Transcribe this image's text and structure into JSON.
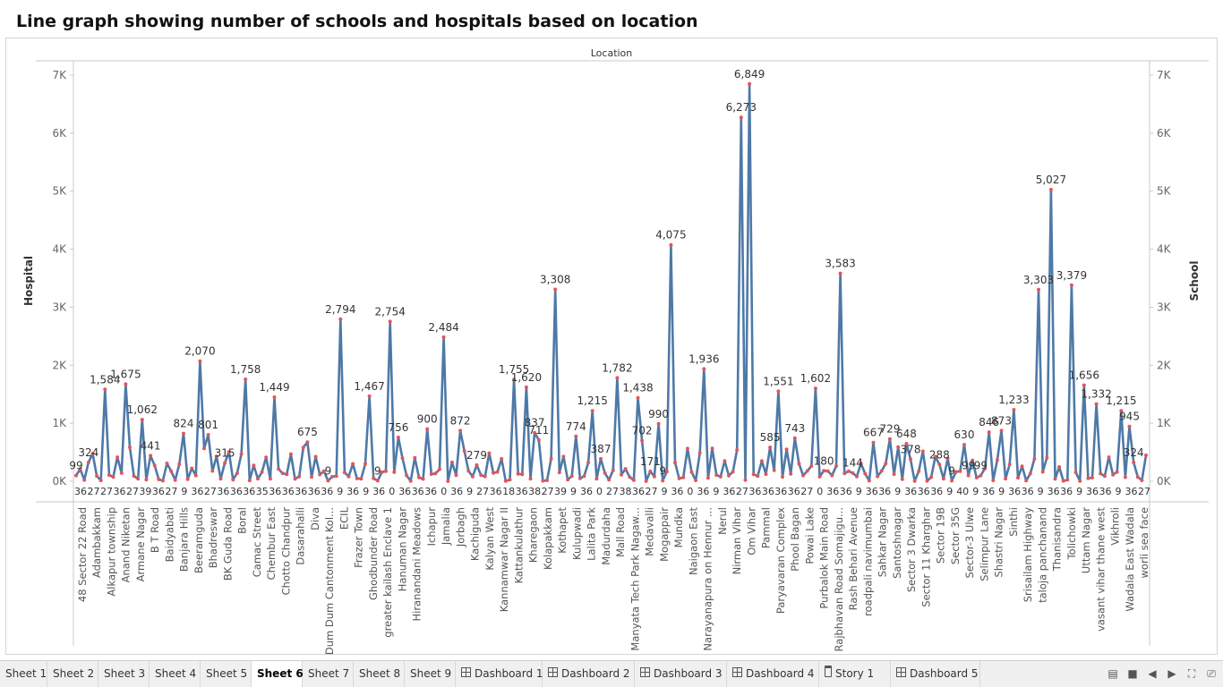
{
  "page": {
    "title": "Line graph showing number of schools and hospitals based on location"
  },
  "chart_data": {
    "type": "line",
    "header": "Location",
    "ylabel_left": "Hospital",
    "ylabel_right": "School",
    "ylim": [
      0,
      7000
    ],
    "yticks": [
      0,
      1000,
      2000,
      3000,
      4000,
      5000,
      6000,
      7000
    ],
    "ytick_labels": [
      "0K",
      "1K",
      "2K",
      "3K",
      "4K",
      "5K",
      "6K",
      "7K"
    ],
    "x_labels": [
      "48 Sector 22 Road",
      "Adambakkam",
      "Alkapur township",
      "Anand Niketan",
      "Armane Nagar",
      "B T Road",
      "Baidyabati",
      "Banjara Hills",
      "Beeramguda",
      "Bhadreswar",
      "BK Guda Road",
      "Boral",
      "Camac Street",
      "Chembur East",
      "Chotto Chandpur",
      "Dasarahalli",
      "Diva",
      "Dum Dum Cantonment Kol...",
      "ECIL",
      "Frazer Town",
      "Ghodbunder Road",
      "greater kailash Enclave 1",
      "Hanuman Nagar",
      "Hiranandani Meadows",
      "Ichapur",
      "Jamalia",
      "Jorbagh",
      "Kachiguda",
      "Kalyan West",
      "Kannamwar Nagar II",
      "Kattankulathur",
      "Kharegaon",
      "Kolapakkam",
      "Kothapet",
      "Kulupwadi",
      "Lalita Park",
      "Madurdaha",
      "Mall Road",
      "Manyata Tech Park Nagaw...",
      "Medavalli",
      "Mogappair",
      "Mundka",
      "Naigaon East",
      "Narayanapura on Hennur ...",
      "Nerul",
      "Nirman Vihar",
      "Om Vihar",
      "Pammal",
      "Paryavaran Complex",
      "Phool Bagan",
      "Powai Lake",
      "Purbalok Main Road",
      "Rajbhavan Road Somajigu...",
      "Rash Behari Avenue",
      "roadpali navimumbai",
      "Sahkar Nagar",
      "Santoshnagar",
      "Sector 3 Dwarka",
      "Sector 11 Kharghar",
      "Sector 19B",
      "Sector 35G",
      "Sector-3 Ulwe",
      "Selimpur Lane",
      "Shastri Nagar",
      "Sinthi",
      "Srisailam Highway",
      "taloja panchanand",
      "Thanisandra",
      "Tolichowki",
      "Uttam Nagar",
      "vasant vihar thane west",
      "Vikhroli",
      "Wadala East Wadala",
      "worli sea face"
    ],
    "peaks": [
      {
        "i": 0,
        "value": 99
      },
      {
        "i": 3,
        "value": 324
      },
      {
        "i": 7,
        "value": 1584
      },
      {
        "i": 12,
        "value": 1675
      },
      {
        "i": 16,
        "value": 1062
      },
      {
        "i": 18,
        "value": 441
      },
      {
        "i": 26,
        "value": 824
      },
      {
        "i": 30,
        "value": 2070
      },
      {
        "i": 32,
        "value": 801
      },
      {
        "i": 36,
        "value": 315
      },
      {
        "i": 41,
        "value": 1758
      },
      {
        "i": 48,
        "value": 1449
      },
      {
        "i": 56,
        "value": 675
      },
      {
        "i": 61,
        "value": 9
      },
      {
        "i": 64,
        "value": 2794
      },
      {
        "i": 71,
        "value": 1467
      },
      {
        "i": 73,
        "value": 9
      },
      {
        "i": 76,
        "value": 2754
      },
      {
        "i": 78,
        "value": 756
      },
      {
        "i": 85,
        "value": 900
      },
      {
        "i": 89,
        "value": 2484
      },
      {
        "i": 93,
        "value": 872
      },
      {
        "i": 97,
        "value": 279
      },
      {
        "i": 106,
        "value": 1755
      },
      {
        "i": 109,
        "value": 1620
      },
      {
        "i": 111,
        "value": 837
      },
      {
        "i": 112,
        "value": 711
      },
      {
        "i": 116,
        "value": 3308
      },
      {
        "i": 121,
        "value": 774
      },
      {
        "i": 125,
        "value": 1215
      },
      {
        "i": 127,
        "value": 387
      },
      {
        "i": 131,
        "value": 1782
      },
      {
        "i": 136,
        "value": 1438
      },
      {
        "i": 137,
        "value": 702
      },
      {
        "i": 139,
        "value": 171
      },
      {
        "i": 141,
        "value": 990
      },
      {
        "i": 142,
        "value": 9
      },
      {
        "i": 144,
        "value": 4075
      },
      {
        "i": 152,
        "value": 1936
      },
      {
        "i": 161,
        "value": 6273
      },
      {
        "i": 163,
        "value": 6849
      },
      {
        "i": 168,
        "value": 585
      },
      {
        "i": 170,
        "value": 1551
      },
      {
        "i": 174,
        "value": 743
      },
      {
        "i": 179,
        "value": 1602
      },
      {
        "i": 181,
        "value": 180
      },
      {
        "i": 185,
        "value": 3583
      },
      {
        "i": 188,
        "value": 144
      },
      {
        "i": 193,
        "value": 667
      },
      {
        "i": 197,
        "value": 729
      },
      {
        "i": 201,
        "value": 648
      },
      {
        "i": 202,
        "value": 378
      },
      {
        "i": 209,
        "value": 288
      },
      {
        "i": 212,
        "value": 9
      },
      {
        "i": 215,
        "value": 630
      },
      {
        "i": 216,
        "value": 99
      },
      {
        "i": 219,
        "value": 99
      },
      {
        "i": 221,
        "value": 846
      },
      {
        "i": 224,
        "value": 873
      },
      {
        "i": 227,
        "value": 1233
      },
      {
        "i": 233,
        "value": 3303
      },
      {
        "i": 236,
        "value": 5027
      },
      {
        "i": 241,
        "value": 3379
      },
      {
        "i": 244,
        "value": 1656
      },
      {
        "i": 247,
        "value": 1332
      },
      {
        "i": 253,
        "value": 1215
      },
      {
        "i": 255,
        "value": 945
      },
      {
        "i": 256,
        "value": 324
      }
    ],
    "bottom_labels": [
      "36",
      "27",
      "27",
      "36",
      "27",
      "39",
      "36",
      "27",
      "9",
      "36",
      "27",
      "36",
      "36",
      "36",
      "35",
      "36",
      "36",
      "36",
      "36",
      "36",
      "9",
      "36",
      "9",
      "36",
      "0",
      "36",
      "36",
      "36",
      "0",
      "36",
      "9",
      "27",
      "36",
      "18",
      "36",
      "38",
      "27",
      "39",
      "9",
      "36",
      "0",
      "27",
      "38",
      "36",
      "27",
      "9",
      "36",
      "0",
      "36",
      "9",
      "36",
      "27",
      "36",
      "36",
      "36",
      "36",
      "27",
      "0",
      "36",
      "36",
      "9",
      "36",
      "36",
      "9",
      "36",
      "36",
      "36",
      "9",
      "40",
      "9",
      "36",
      "9",
      "36",
      "36",
      "9",
      "36",
      "36",
      "9",
      "36",
      "36",
      "9",
      "36",
      "27"
    ]
  },
  "tabs": [
    "Sheet 1",
    "Sheet 2",
    "Sheet 3",
    "Sheet 4",
    "Sheet 5",
    "Sheet 6",
    "Sheet 7",
    "Sheet 8",
    "Sheet 9",
    "Dashboard 1",
    "Dashboard 2",
    "Dashboard 3",
    "Dashboard 4",
    "Story 1",
    "Dashboard 5"
  ],
  "active_tab": "Sheet 6",
  "colors": {
    "line": "#4e79a7",
    "marker": "#e15759",
    "axis": "#c8c8c8",
    "text": "#666666"
  }
}
